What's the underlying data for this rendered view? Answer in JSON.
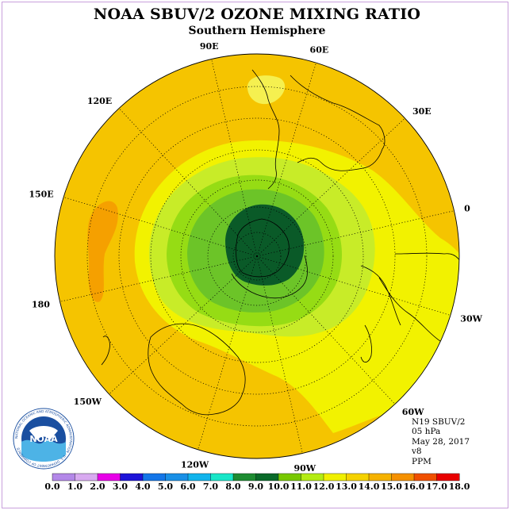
{
  "title": "NOAA SBUV/2 OZONE MIXING RATIO",
  "subtitle": "Southern Hemisphere",
  "info": {
    "satellite": "N19 SBUV/2",
    "level": "05 hPa",
    "date": "May 28, 2017",
    "version": "v8",
    "units": "PPM"
  },
  "logo": {
    "text": "NOAA",
    "ring_text": "NATIONAL OCEANIC AND ATMOSPHERIC ADMINISTRATION · U.S. DEPARTMENT OF COMMERCE"
  },
  "meridians": [
    {
      "label": "0",
      "lon": 0
    },
    {
      "label": "30E",
      "lon": 30
    },
    {
      "label": "60E",
      "lon": 60
    },
    {
      "label": "90E",
      "lon": 90
    },
    {
      "label": "120E",
      "lon": 120
    },
    {
      "label": "150E",
      "lon": 150
    },
    {
      "label": "180",
      "lon": 180
    },
    {
      "label": "150W",
      "lon": -150
    },
    {
      "label": "120W",
      "lon": -120
    },
    {
      "label": "90W",
      "lon": -90
    },
    {
      "label": "60W",
      "lon": -60
    },
    {
      "label": "30W",
      "lon": -30
    }
  ],
  "colorbar": {
    "ticks": [
      "0.0",
      "1.0",
      "2.0",
      "3.0",
      "4.0",
      "5.0",
      "6.0",
      "7.0",
      "8.0",
      "9.0",
      "10.0",
      "11.0",
      "12.0",
      "13.0",
      "14.0",
      "15.0",
      "16.0",
      "17.0",
      "18.0"
    ],
    "colors": [
      "#b388e8",
      "#d8aaf0",
      "#e800e8",
      "#1e14d8",
      "#1476e8",
      "#1a90e6",
      "#12b4ec",
      "#19e6c8",
      "#1e8c32",
      "#0a6a2a",
      "#78c800",
      "#b4ec14",
      "#f0f000",
      "#f5d200",
      "#f5b200",
      "#f59100",
      "#f05000",
      "#e80000",
      "#8c5a3c"
    ]
  },
  "map_colors": {
    "c12": "#f5c400",
    "c13": "#f5f200",
    "c14": "#f2f532",
    "c11": "#c8ec28",
    "c10": "#96dc14",
    "c9": "#6cc428",
    "c8": "#0a5a28",
    "orange": "#f5a000",
    "lightyellow": "#f5f050"
  }
}
